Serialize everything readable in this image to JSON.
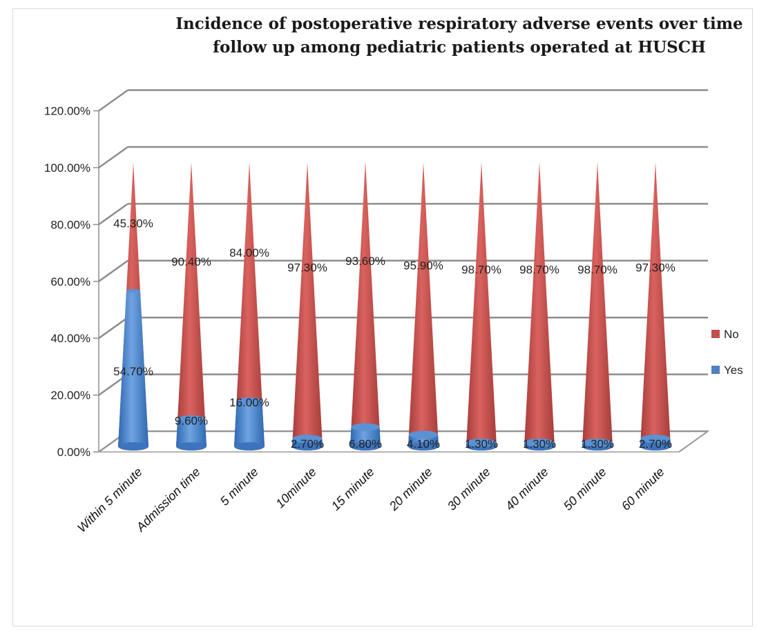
{
  "chart_data": {
    "type": "bar",
    "subtype": "3d-stacked-cone",
    "title": "Incidence of postoperative respiratory adverse events over time follow up among pediatric patients operated at HUSCH",
    "xlabel": "",
    "ylabel": "",
    "ylim": [
      0,
      120
    ],
    "y_ticks": [
      "0.00%",
      "20.00%",
      "40.00%",
      "60.00%",
      "80.00%",
      "100.00%",
      "120.00%"
    ],
    "grid": true,
    "legend_position": "right",
    "categories": [
      "Within 5 minute",
      "Admission time",
      "5 minute",
      "10minute",
      "15 minute",
      "20 minute",
      "30 minute",
      "40 minute",
      "50 minute",
      "60 minute"
    ],
    "series": [
      {
        "name": "Yes",
        "color": "#4f81bd",
        "values": [
          54.7,
          9.6,
          16.0,
          2.7,
          6.8,
          4.1,
          1.3,
          1.3,
          1.3,
          2.7
        ],
        "labels": [
          "54.70%",
          "9.60%",
          "16.00%",
          "2.70%",
          "6.80%",
          "4.10%",
          "1.30%",
          "1.30%",
          "1.30%",
          "2.70%"
        ]
      },
      {
        "name": "No",
        "color": "#c0504d",
        "values": [
          45.3,
          90.4,
          84.0,
          97.3,
          93.6,
          95.9,
          98.7,
          98.7,
          98.7,
          97.3
        ],
        "labels": [
          "45.30%",
          "90.40%",
          "84.00%",
          "97.30%",
          "93.60%",
          "95.90%",
          "98.70%",
          "98.70%",
          "98.70%",
          "97.30%"
        ]
      }
    ]
  }
}
